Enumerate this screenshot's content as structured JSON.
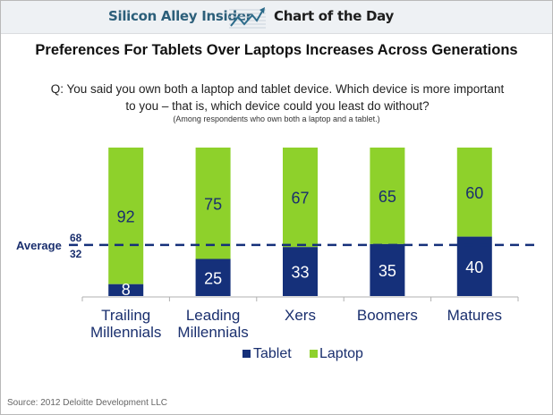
{
  "header": {
    "brand": "Silicon Alley Insider",
    "logo_icon": "trend-line-chart-icon",
    "section": "Chart of the Day"
  },
  "question": {
    "line1": "Q: You said you own both a laptop and tablet device. Which device is more important",
    "line2": "to you – that is, which device could you least do without?",
    "note": "(Among respondents who own both a laptop and a tablet.)"
  },
  "source": "Source: 2012 Deloitte Development LLC",
  "colors": {
    "tablet": "#15307a",
    "laptop": "#8ed12b",
    "axis_text": "#1a2f6e",
    "average_line": "#15307a"
  },
  "chart_data": {
    "type": "bar",
    "stacked": true,
    "title": "Preferences For Tablets Over Laptops Increases Across Generations",
    "xlabel": "",
    "ylabel": "",
    "ylim": [
      0,
      100
    ],
    "grid": false,
    "categories": [
      [
        "Trailing",
        "Millennials"
      ],
      [
        "Leading",
        "Millennials"
      ],
      [
        "Xers"
      ],
      [
        "Boomers"
      ],
      [
        "Matures"
      ]
    ],
    "series": [
      {
        "name": "Tablet",
        "values": [
          8,
          25,
          33,
          35,
          40
        ]
      },
      {
        "name": "Laptop",
        "values": [
          92,
          75,
          67,
          65,
          60
        ]
      }
    ],
    "average": {
      "label": "Average",
      "tablet": 32,
      "laptop": 68,
      "laptop_label": "68",
      "tablet_label": "32"
    },
    "legend": {
      "position": "bottom-center",
      "entries": [
        "Tablet",
        "Laptop"
      ]
    }
  }
}
